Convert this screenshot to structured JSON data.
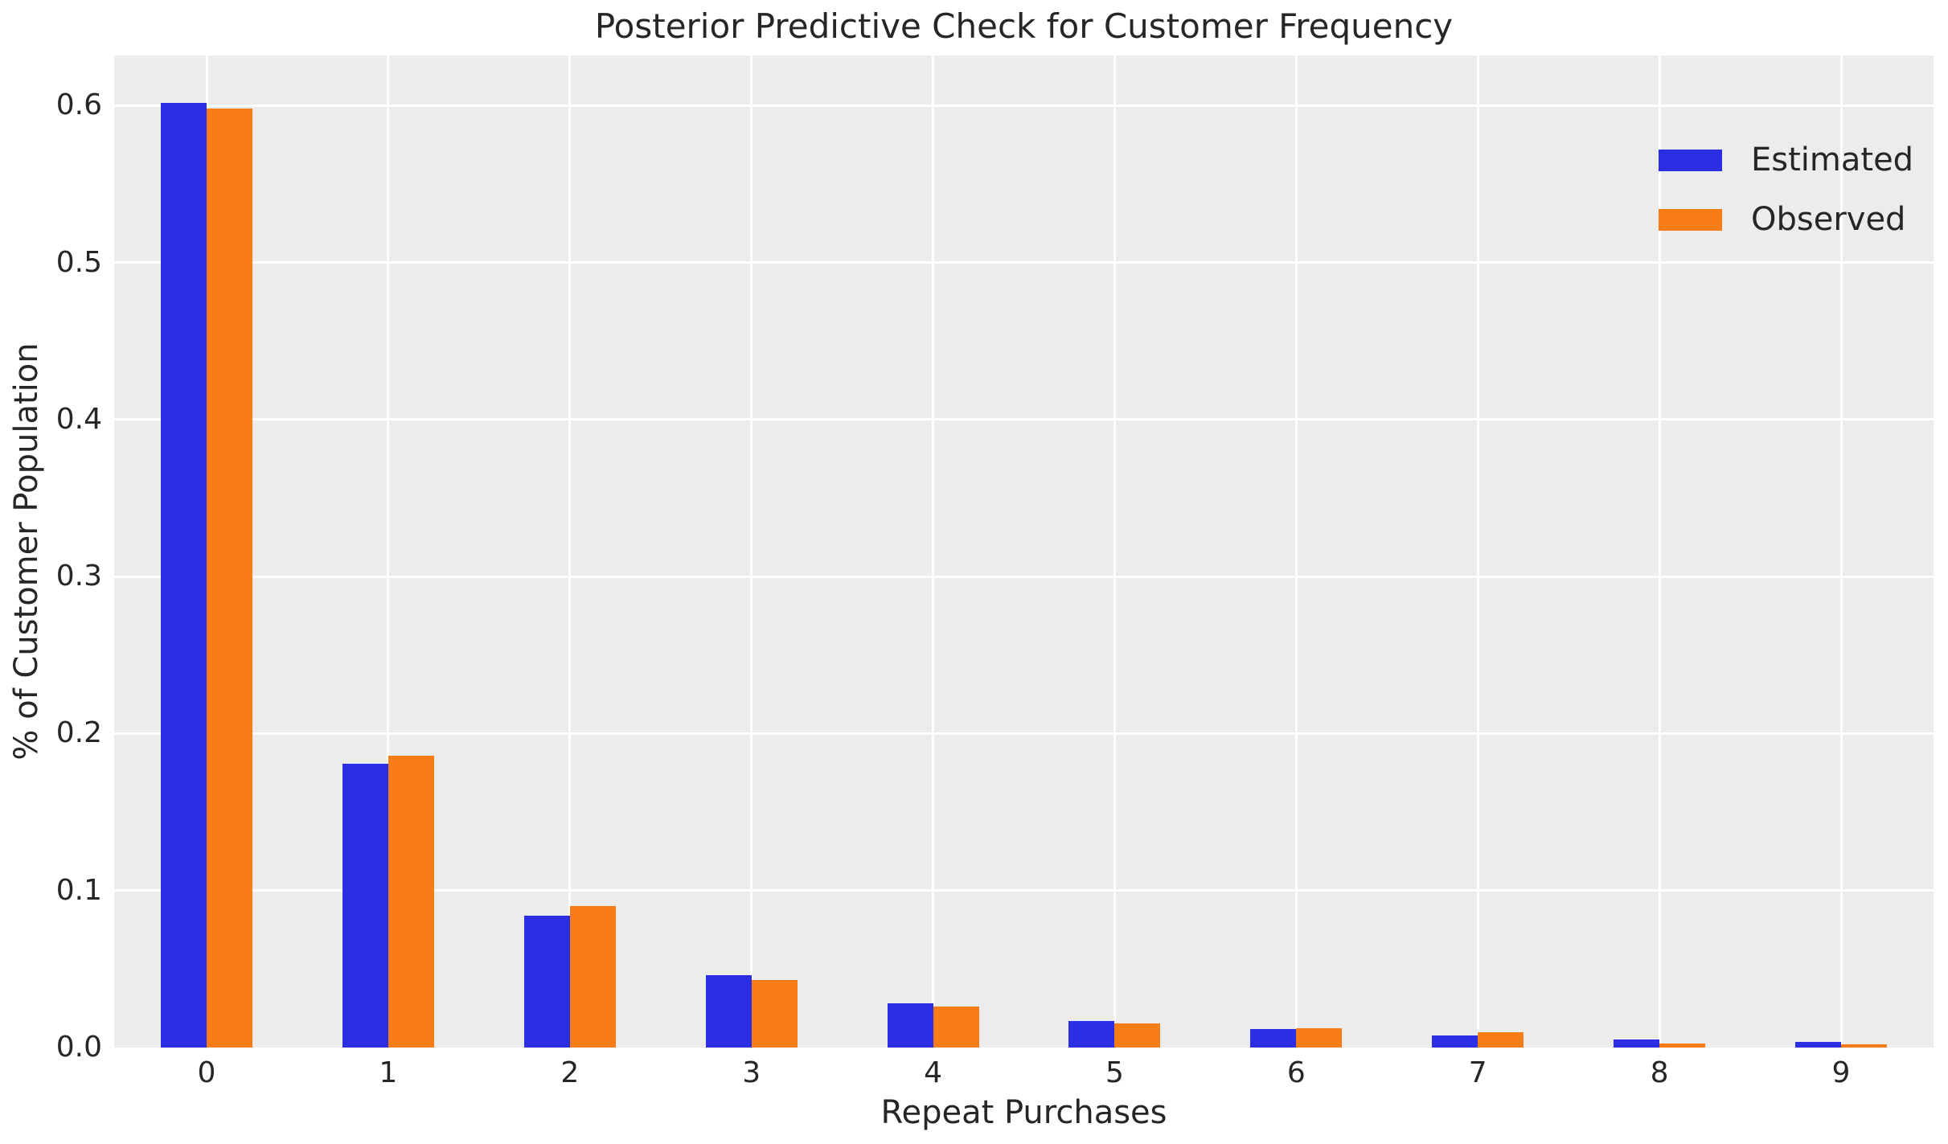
{
  "chart_data": {
    "type": "bar",
    "title": "Posterior Predictive Check for Customer Frequency",
    "xlabel": "Repeat Purchases",
    "ylabel": "% of Customer Population",
    "categories": [
      "0",
      "1",
      "2",
      "3",
      "4",
      "5",
      "6",
      "7",
      "8",
      "9"
    ],
    "series": [
      {
        "name": "Estimated",
        "color": "#2b2ee2",
        "values": [
          0.602,
          0.181,
          0.084,
          0.046,
          0.028,
          0.017,
          0.012,
          0.0075,
          0.005,
          0.0035
        ]
      },
      {
        "name": "Observed",
        "color": "#f87d16",
        "values": [
          0.598,
          0.186,
          0.09,
          0.043,
          0.026,
          0.0155,
          0.0125,
          0.0095,
          0.0025,
          0.0018
        ]
      }
    ],
    "ylim": [
      0,
      0.632
    ],
    "yticks": [
      0,
      0.1,
      0.2,
      0.3,
      0.4,
      0.5,
      0.6
    ],
    "ytick_labels": [
      "0.0",
      "0.1",
      "0.2",
      "0.3",
      "0.4",
      "0.5",
      "0.6"
    ],
    "grid": true,
    "legend_position": "upper right",
    "plot_background": "#ececec",
    "grid_color": "#ffffff",
    "text_color": "#262626"
  }
}
